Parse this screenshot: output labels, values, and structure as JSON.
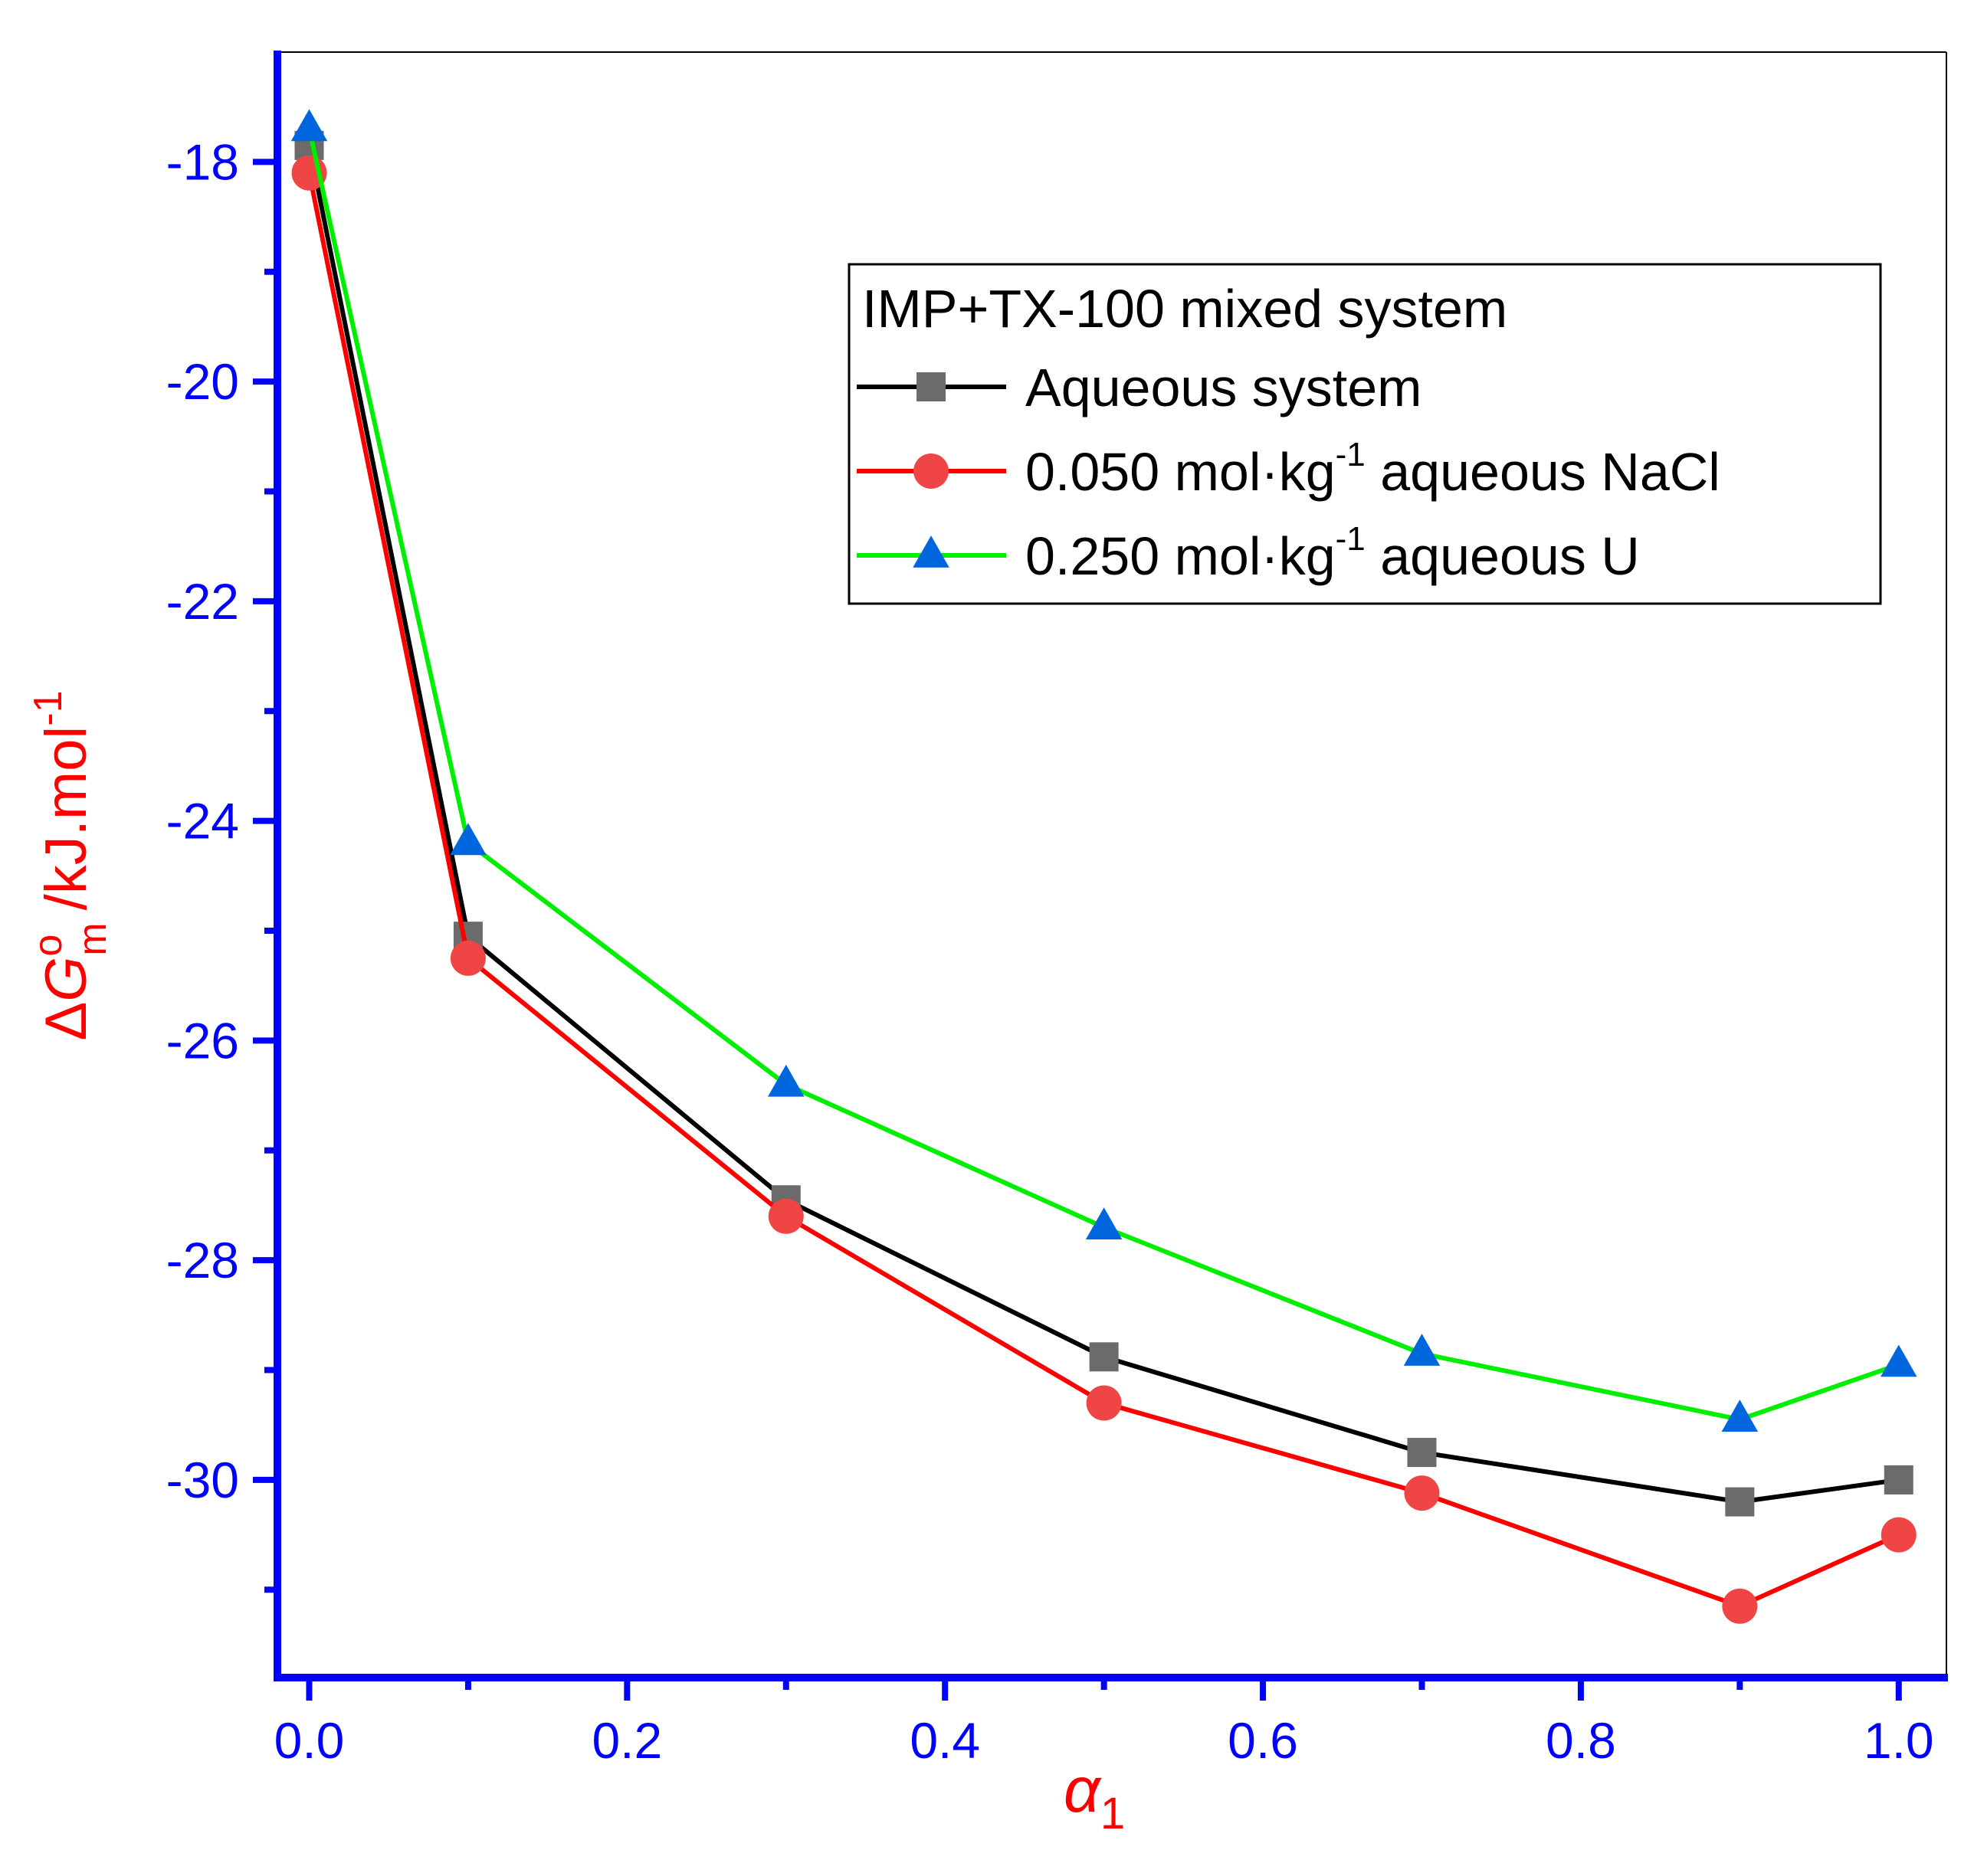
{
  "chart_data": {
    "type": "line",
    "legend_title": "IMP+TX-100 mixed system",
    "legend_position": "top-right",
    "xlabel": "α",
    "xlabel_sub": "1",
    "ylabel_delta": "Δ",
    "ylabel_var": "G",
    "ylabel_sup": "o",
    "ylabel_sub": "m",
    "ylabel_unit": "/kJ.mol",
    "ylabel_unit_sup": "-1",
    "xlim": [
      -0.02,
      1.03
    ],
    "ylim": [
      -31.8,
      -17.0
    ],
    "x_ticks": [
      0.0,
      0.2,
      0.4,
      0.6,
      0.8,
      1.0
    ],
    "x_tick_labels": [
      "0.0",
      "0.2",
      "0.4",
      "0.6",
      "0.8",
      "1.0"
    ],
    "x_minor_ticks": [
      0.1,
      0.3,
      0.5,
      0.7,
      0.9
    ],
    "y_ticks": [
      -18,
      -20,
      -22,
      -24,
      -26,
      -28,
      -30
    ],
    "y_tick_labels": [
      "-18",
      "-20",
      "-22",
      "-24",
      "-26",
      "-28",
      "-30"
    ],
    "y_minor_ticks": [
      -19,
      -21,
      -23,
      -25,
      -27,
      -29,
      -31
    ],
    "axis_color": "#0000ff",
    "label_color": "#ff0000",
    "x": [
      0.0,
      0.1,
      0.3,
      0.5,
      0.7,
      0.9,
      1.0
    ],
    "series": [
      {
        "name": "Aqueous system",
        "legend_text": "Aqueous system",
        "legend_sup": "",
        "legend_suffix": "",
        "marker": "square",
        "line_color": "#000000",
        "marker_color": "#6b6b6b",
        "values": [
          -17.85,
          -25.05,
          -27.45,
          -28.88,
          -29.75,
          -30.2,
          -30.0
        ]
      },
      {
        "name": "0.050 mol·kg-1 aqueous NaCl",
        "legend_text": "0.050 mol·kg",
        "legend_sup": "-1",
        "legend_suffix": " aqueous NaCl",
        "marker": "circle",
        "line_color": "#ff0000",
        "marker_color": "#f04545",
        "values": [
          -18.1,
          -25.25,
          -27.6,
          -29.3,
          -30.12,
          -31.15,
          -30.5
        ]
      },
      {
        "name": "0.250 mol·kg-1 aqueous U",
        "legend_text": "0.250 mol·kg",
        "legend_sup": "-1",
        "legend_suffix": " aqueous U",
        "marker": "triangle",
        "line_color": "#00ee00",
        "marker_color": "#0066dd",
        "values": [
          -17.7,
          -24.2,
          -26.4,
          -27.7,
          -28.85,
          -29.45,
          -28.95
        ]
      }
    ]
  }
}
